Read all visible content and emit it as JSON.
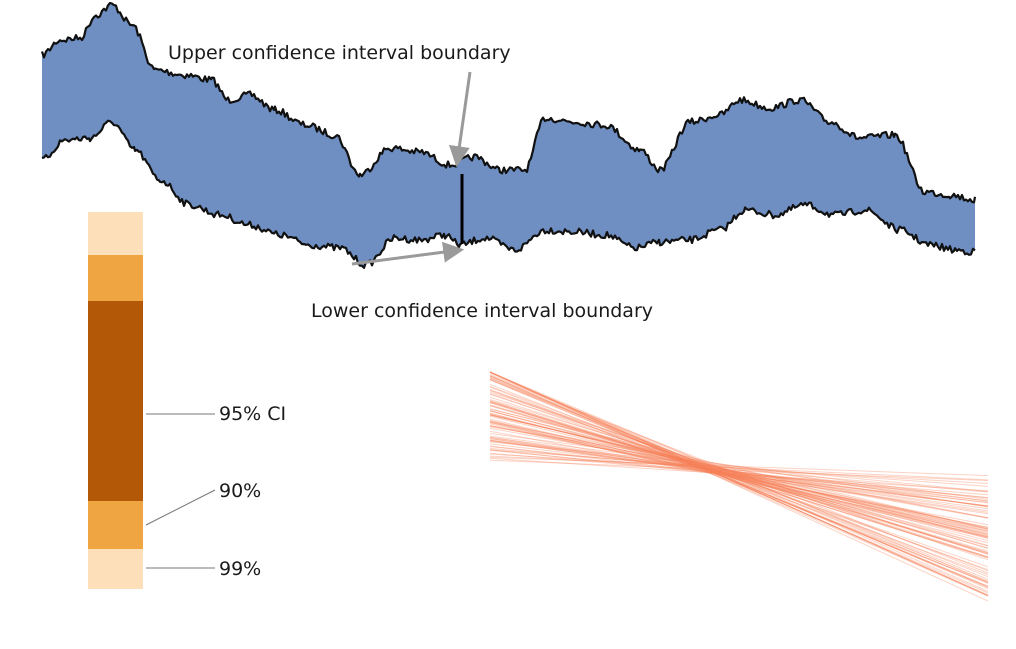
{
  "band": {
    "upper_label": "Upper confidence interval boundary",
    "lower_label": "Lower confidence interval boundary"
  },
  "interval_bar": {
    "labels": {
      "ci95": "95% CI",
      "ci90": "90%",
      "ci99": "99%"
    },
    "colors": {
      "outer": "#fde0b9",
      "middle": "#f0a543",
      "inner": "#b35806"
    }
  },
  "colors": {
    "band_fill": "#6f8fc2",
    "band_outline": "#111111",
    "arrow": "#9a9a9a",
    "lines": "#f7825a"
  }
}
